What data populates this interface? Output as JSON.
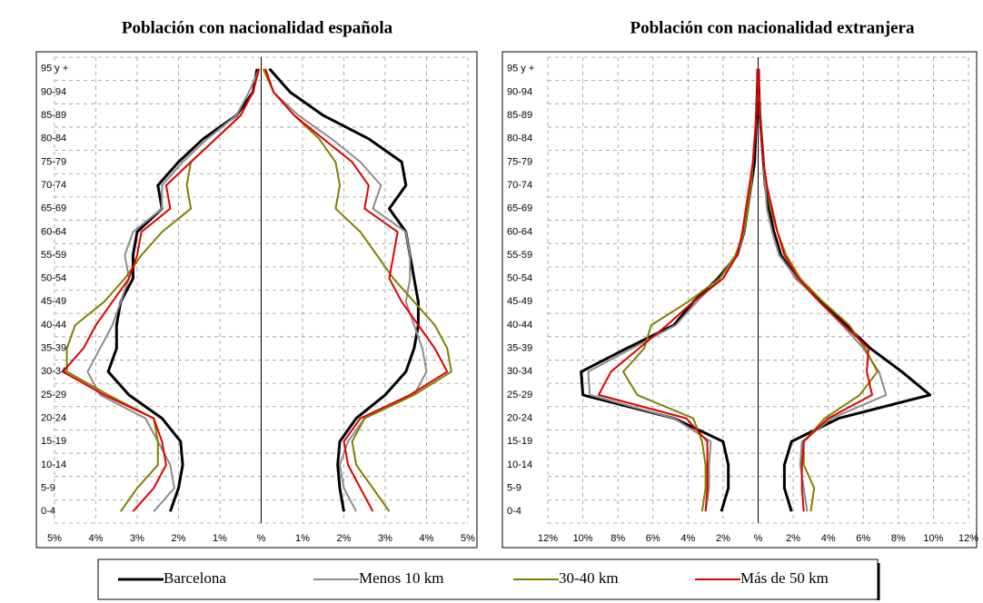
{
  "legend": [
    {
      "name": "Barcelona",
      "color": "#000000"
    },
    {
      "name": "Menos 10 km",
      "color": "#8c8c8c"
    },
    {
      "name": "30-40 km",
      "color": "#808000"
    },
    {
      "name": "Más de 50 km",
      "color": "#e00000"
    }
  ],
  "chart_data": [
    {
      "type": "pyramid-line",
      "title": "Población con nacionalidad española",
      "categories": [
        "0-4",
        "5-9",
        "10-14",
        "15-19",
        "20-24",
        "25-29",
        "30-34",
        "35-39",
        "40-44",
        "45-49",
        "50-54",
        "55-59",
        "60-64",
        "65-69",
        "70-74",
        "75-79",
        "80-84",
        "85-89",
        "90-94",
        "95 y +"
      ],
      "xlim": [
        -5,
        5
      ],
      "xticks": [
        {
          "value": -5,
          "label": "5%"
        },
        {
          "value": -4,
          "label": "4%"
        },
        {
          "value": -3,
          "label": "3%"
        },
        {
          "value": -2,
          "label": "2%"
        },
        {
          "value": -1,
          "label": "1%"
        },
        {
          "value": 0,
          "label": "%"
        },
        {
          "value": 1,
          "label": "1%"
        },
        {
          "value": 2,
          "label": "2%"
        },
        {
          "value": 3,
          "label": "3%"
        },
        {
          "value": 4,
          "label": "4%"
        },
        {
          "value": 5,
          "label": "5%"
        }
      ],
      "grid": true,
      "series": [
        {
          "left": [
            -2.2,
            -2.0,
            -1.9,
            -1.95,
            -2.4,
            -3.2,
            -3.7,
            -3.5,
            -3.5,
            -3.4,
            -3.1,
            -3.1,
            -3.0,
            -2.4,
            -2.5,
            -2.0,
            -1.4,
            -0.6,
            -0.2,
            -0.1
          ],
          "right": [
            2.0,
            1.9,
            1.85,
            1.9,
            2.3,
            3.0,
            3.5,
            3.7,
            3.8,
            3.8,
            3.7,
            3.6,
            3.5,
            3.1,
            3.5,
            3.4,
            2.6,
            1.5,
            0.7,
            0.2
          ]
        },
        {
          "left": [
            -2.6,
            -2.1,
            -2.2,
            -2.5,
            -2.8,
            -3.9,
            -4.2,
            -3.9,
            -3.6,
            -3.4,
            -3.2,
            -3.3,
            -3.1,
            -2.4,
            -2.4,
            -1.9,
            -1.3,
            -0.6,
            -0.3,
            -0.05
          ],
          "right": [
            2.3,
            2.0,
            1.9,
            2.1,
            2.5,
            3.7,
            4.0,
            3.9,
            3.7,
            3.5,
            3.6,
            3.6,
            3.5,
            2.7,
            2.9,
            2.4,
            1.7,
            0.9,
            0.3,
            0.1
          ]
        },
        {
          "left": [
            -3.4,
            -3.0,
            -2.5,
            -2.5,
            -2.6,
            -3.7,
            -4.7,
            -4.7,
            -4.5,
            -3.8,
            -3.3,
            -2.9,
            -2.4,
            -1.7,
            -1.8,
            -1.7,
            -1.1,
            -0.5,
            -0.2,
            -0.05
          ],
          "right": [
            3.1,
            2.7,
            2.3,
            2.2,
            2.5,
            3.7,
            4.6,
            4.5,
            4.2,
            3.7,
            3.2,
            2.8,
            2.4,
            1.8,
            1.9,
            1.8,
            1.4,
            0.8,
            0.3,
            0.05
          ]
        },
        {
          "left": [
            -3.1,
            -2.6,
            -2.3,
            -2.4,
            -2.6,
            -3.8,
            -4.8,
            -4.3,
            -4.0,
            -3.6,
            -3.2,
            -3.0,
            -2.9,
            -2.2,
            -2.3,
            -1.7,
            -1.1,
            -0.5,
            -0.2,
            -0.05
          ],
          "right": [
            2.7,
            2.4,
            2.1,
            2.0,
            2.4,
            3.6,
            4.5,
            4.2,
            3.8,
            3.4,
            3.1,
            3.2,
            3.3,
            2.5,
            2.6,
            2.2,
            1.5,
            0.8,
            0.3,
            0.1
          ]
        }
      ]
    },
    {
      "type": "pyramid-line",
      "title": "Población con nacionalidad extranjera",
      "categories": [
        "0-4",
        "5-9",
        "10-14",
        "15-19",
        "20-24",
        "25-29",
        "30-34",
        "35-39",
        "40-44",
        "45-49",
        "50-54",
        "55-59",
        "60-64",
        "65-69",
        "70-74",
        "75-79",
        "80-84",
        "85-89",
        "90-94",
        "95 y +"
      ],
      "xlim": [
        -12,
        12
      ],
      "xticks": [
        {
          "value": -12,
          "label": "12%"
        },
        {
          "value": -10,
          "label": "10%"
        },
        {
          "value": -8,
          "label": "8%"
        },
        {
          "value": -6,
          "label": "6%"
        },
        {
          "value": -4,
          "label": "4%"
        },
        {
          "value": -2,
          "label": "2%"
        },
        {
          "value": 0,
          "label": "%"
        },
        {
          "value": 2,
          "label": "2%"
        },
        {
          "value": 4,
          "label": "4%"
        },
        {
          "value": 6,
          "label": "6%"
        },
        {
          "value": 8,
          "label": "8%"
        },
        {
          "value": 10,
          "label": "10%"
        },
        {
          "value": 12,
          "label": "12%"
        }
      ],
      "grid": true,
      "series": [
        {
          "left": [
            -2.1,
            -1.7,
            -1.7,
            -2.0,
            -4.8,
            -10.0,
            -10.1,
            -7.5,
            -4.8,
            -3.7,
            -2.3,
            -1.2,
            -0.8,
            -0.6,
            -0.4,
            -0.2,
            -0.15,
            -0.1,
            -0.05,
            -0.02
          ],
          "right": [
            1.9,
            1.5,
            1.5,
            1.9,
            4.6,
            9.8,
            8.2,
            6.4,
            5.0,
            3.6,
            2.2,
            1.3,
            0.9,
            0.6,
            0.4,
            0.3,
            0.2,
            0.1,
            0.05,
            0.02
          ]
        },
        {
          "left": [
            -3.0,
            -2.8,
            -2.8,
            -2.7,
            -4.8,
            -9.6,
            -9.7,
            -7.2,
            -4.7,
            -3.5,
            -2.2,
            -1.2,
            -0.8,
            -0.6,
            -0.4,
            -0.3,
            -0.2,
            -0.1,
            -0.05,
            -0.02
          ],
          "right": [
            2.8,
            2.6,
            2.4,
            2.5,
            4.2,
            7.3,
            6.9,
            6.0,
            4.8,
            3.5,
            2.2,
            1.2,
            0.8,
            0.5,
            0.4,
            0.3,
            0.2,
            0.1,
            0.05,
            0.02
          ]
        },
        {
          "left": [
            -3.2,
            -3.0,
            -3.0,
            -3.2,
            -3.7,
            -6.9,
            -7.7,
            -6.5,
            -6.1,
            -4.0,
            -2.2,
            -1.3,
            -0.8,
            -0.6,
            -0.4,
            -0.3,
            -0.2,
            -0.1,
            -0.05,
            -0.02
          ],
          "right": [
            3.0,
            3.2,
            2.6,
            2.6,
            3.8,
            5.8,
            6.8,
            6.1,
            5.2,
            3.7,
            2.4,
            1.6,
            1.1,
            0.7,
            0.5,
            0.3,
            0.2,
            0.1,
            0.05,
            0.02
          ]
        },
        {
          "left": [
            -3.0,
            -2.9,
            -2.9,
            -2.9,
            -4.1,
            -9.1,
            -8.4,
            -6.8,
            -5.2,
            -3.7,
            -2.0,
            -1.2,
            -0.9,
            -0.7,
            -0.5,
            -0.3,
            -0.2,
            -0.1,
            -0.05,
            -0.02
          ],
          "right": [
            2.6,
            2.5,
            2.5,
            2.6,
            4.0,
            6.5,
            6.2,
            6.3,
            4.9,
            3.5,
            2.3,
            1.5,
            1.1,
            0.8,
            0.5,
            0.3,
            0.2,
            0.1,
            0.05,
            0.02
          ]
        }
      ]
    }
  ]
}
